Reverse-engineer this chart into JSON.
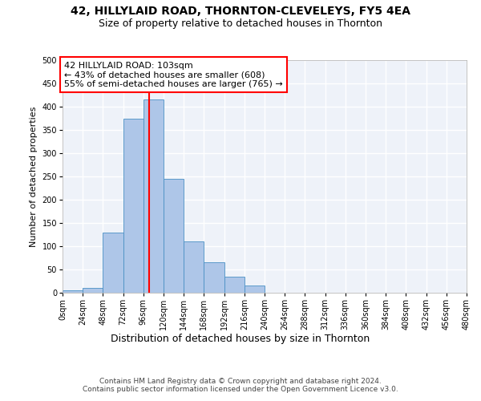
{
  "title1": "42, HILLYLAID ROAD, THORNTON-CLEVELEYS, FY5 4EA",
  "title2": "Size of property relative to detached houses in Thornton",
  "xlabel": "Distribution of detached houses by size in Thornton",
  "ylabel": "Number of detached properties",
  "bin_edges": [
    0,
    24,
    48,
    72,
    96,
    120,
    144,
    168,
    192,
    216,
    240,
    264,
    288,
    312,
    336,
    360,
    384,
    408,
    432,
    456,
    480
  ],
  "bar_heights": [
    5,
    10,
    130,
    375,
    415,
    245,
    110,
    65,
    35,
    15,
    0,
    0,
    0,
    0,
    0,
    0,
    0,
    0,
    0,
    0
  ],
  "bar_color": "#aec6e8",
  "bar_edge_color": "#4a90c4",
  "red_line_x": 103,
  "annotation_text": "42 HILLYLAID ROAD: 103sqm\n← 43% of detached houses are smaller (608)\n55% of semi-detached houses are larger (765) →",
  "annotation_box_color": "white",
  "annotation_box_edge_color": "red",
  "ylim": [
    0,
    500
  ],
  "xlim": [
    0,
    480
  ],
  "yticks": [
    0,
    50,
    100,
    150,
    200,
    250,
    300,
    350,
    400,
    450,
    500
  ],
  "xtick_labels": [
    "0sqm",
    "24sqm",
    "48sqm",
    "72sqm",
    "96sqm",
    "120sqm",
    "144sqm",
    "168sqm",
    "192sqm",
    "216sqm",
    "240sqm",
    "264sqm",
    "288sqm",
    "312sqm",
    "336sqm",
    "360sqm",
    "384sqm",
    "408sqm",
    "432sqm",
    "456sqm",
    "480sqm"
  ],
  "footer_text": "Contains HM Land Registry data © Crown copyright and database right 2024.\nContains public sector information licensed under the Open Government Licence v3.0.",
  "bg_color": "#eef2f9",
  "grid_color": "white",
  "title1_fontsize": 10,
  "title2_fontsize": 9,
  "xlabel_fontsize": 9,
  "ylabel_fontsize": 8,
  "tick_fontsize": 7,
  "annotation_fontsize": 8,
  "footer_fontsize": 6.5
}
